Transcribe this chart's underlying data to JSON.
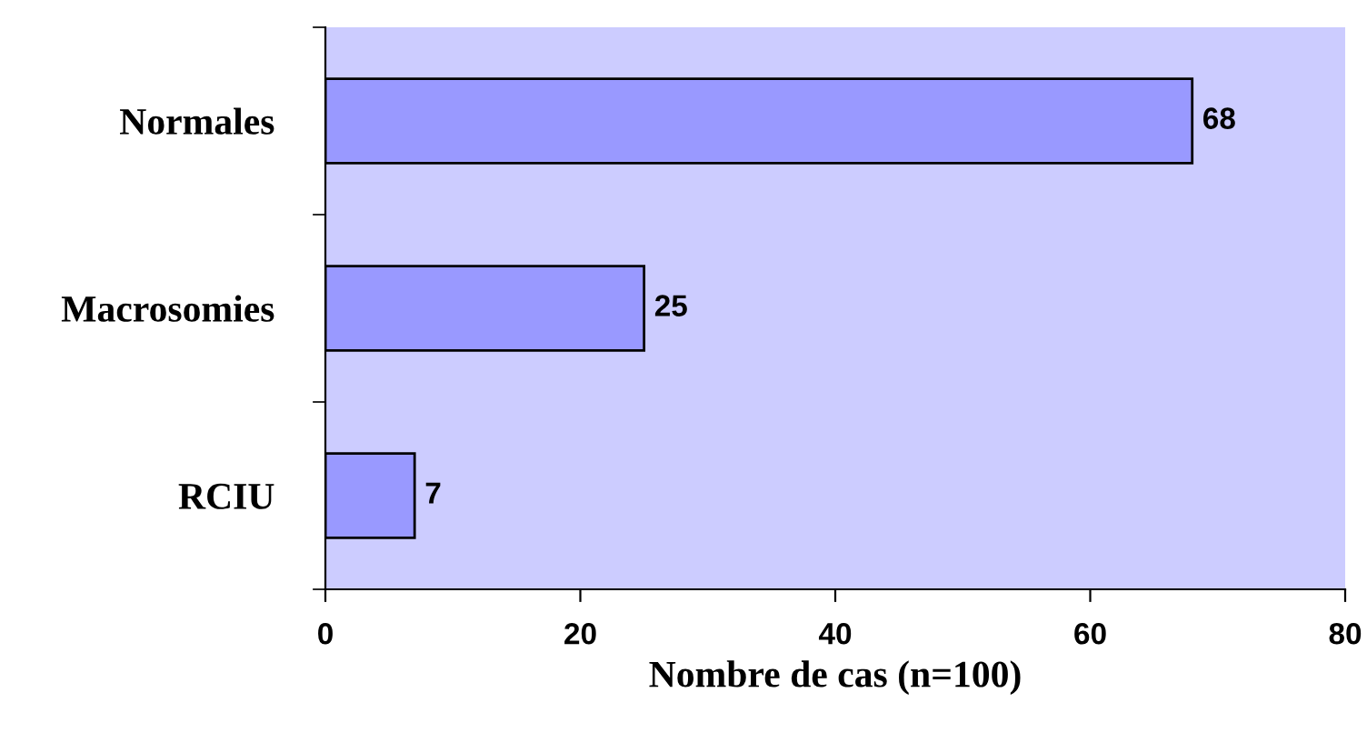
{
  "chart_data": {
    "type": "bar",
    "orientation": "horizontal",
    "categories": [
      "Normales",
      "Macrosomies",
      "RCIU"
    ],
    "values": [
      68,
      25,
      7
    ],
    "color": "#9999ff",
    "xlim": [
      0,
      80
    ],
    "xticks": [
      0,
      20,
      40,
      60,
      80
    ],
    "xlabel": "Nombre de cas (n=100)",
    "data_labels": true,
    "grid": false,
    "legend": false
  }
}
